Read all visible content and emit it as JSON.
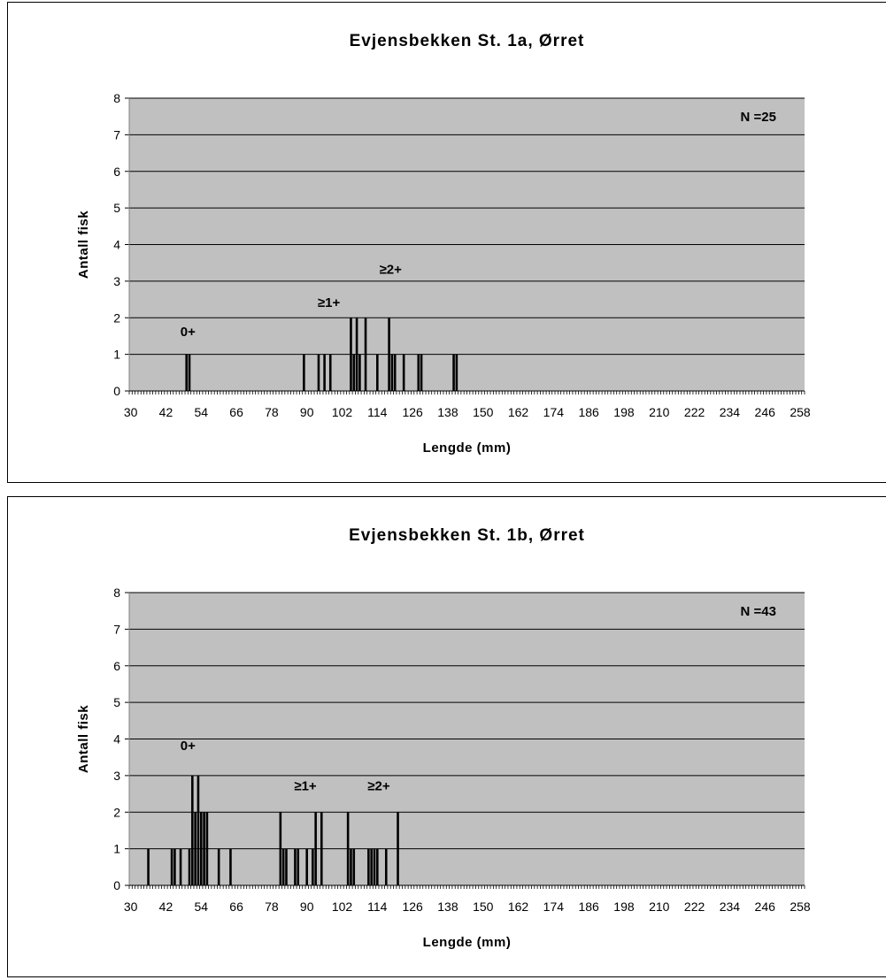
{
  "chart_data": [
    {
      "type": "bar",
      "title": "Evjensbekken St. 1a, Ørret",
      "xlabel": "Lengde (mm)",
      "ylabel": "Antall fisk",
      "ylim": [
        0,
        8
      ],
      "yticks": [
        "0",
        "1",
        "2",
        "3",
        "4",
        "5",
        "6",
        "7",
        "8"
      ],
      "xlim": [
        30,
        260
      ],
      "xticks": [
        "30",
        "42",
        "54",
        "66",
        "78",
        "90",
        "102",
        "114",
        "126",
        "138",
        "150",
        "162",
        "174",
        "186",
        "198",
        "210",
        "222",
        "234",
        "246",
        "258"
      ],
      "grid": true,
      "legend": "none",
      "n_label": "N =25",
      "age_labels": [
        {
          "text": "0+",
          "x": 50,
          "y": 1.5
        },
        {
          "text": "≥1+",
          "x": 98,
          "y": 2.3
        },
        {
          "text": "≥2+",
          "x": 119,
          "y": 3.2
        }
      ],
      "bars": [
        {
          "x": 49,
          "value": 1
        },
        {
          "x": 50,
          "value": 1
        },
        {
          "x": 89,
          "value": 1
        },
        {
          "x": 94,
          "value": 1
        },
        {
          "x": 96,
          "value": 1
        },
        {
          "x": 98,
          "value": 1
        },
        {
          "x": 105,
          "value": 2
        },
        {
          "x": 106,
          "value": 1
        },
        {
          "x": 107,
          "value": 2
        },
        {
          "x": 108,
          "value": 1
        },
        {
          "x": 110,
          "value": 2
        },
        {
          "x": 114,
          "value": 1
        },
        {
          "x": 118,
          "value": 2
        },
        {
          "x": 119,
          "value": 1
        },
        {
          "x": 120,
          "value": 1
        },
        {
          "x": 123,
          "value": 1
        },
        {
          "x": 128,
          "value": 1
        },
        {
          "x": 129,
          "value": 1
        },
        {
          "x": 140,
          "value": 1
        },
        {
          "x": 141,
          "value": 1
        }
      ]
    },
    {
      "type": "bar",
      "title": "Evjensbekken St. 1b, Ørret",
      "xlabel": "Lengde (mm)",
      "ylabel": "Antall fisk",
      "ylim": [
        0,
        8
      ],
      "yticks": [
        "0",
        "1",
        "2",
        "3",
        "4",
        "5",
        "6",
        "7",
        "8"
      ],
      "xlim": [
        30,
        260
      ],
      "xticks": [
        "30",
        "42",
        "54",
        "66",
        "78",
        "90",
        "102",
        "114",
        "126",
        "138",
        "150",
        "162",
        "174",
        "186",
        "198",
        "210",
        "222",
        "234",
        "246",
        "258"
      ],
      "grid": true,
      "legend": "none",
      "n_label": "N =43",
      "age_labels": [
        {
          "text": "0+",
          "x": 50,
          "y": 3.7
        },
        {
          "text": "≥1+",
          "x": 90,
          "y": 2.6
        },
        {
          "text": "≥2+",
          "x": 115,
          "y": 2.6
        }
      ],
      "bars": [
        {
          "x": 36,
          "value": 1
        },
        {
          "x": 44,
          "value": 1
        },
        {
          "x": 45,
          "value": 1
        },
        {
          "x": 47,
          "value": 1
        },
        {
          "x": 50,
          "value": 1
        },
        {
          "x": 51,
          "value": 3
        },
        {
          "x": 52,
          "value": 2
        },
        {
          "x": 53,
          "value": 3
        },
        {
          "x": 54,
          "value": 2
        },
        {
          "x": 55,
          "value": 2
        },
        {
          "x": 56,
          "value": 2
        },
        {
          "x": 60,
          "value": 1
        },
        {
          "x": 64,
          "value": 1
        },
        {
          "x": 81,
          "value": 2
        },
        {
          "x": 82,
          "value": 1
        },
        {
          "x": 83,
          "value": 1
        },
        {
          "x": 86,
          "value": 1
        },
        {
          "x": 87,
          "value": 1
        },
        {
          "x": 90,
          "value": 1
        },
        {
          "x": 92,
          "value": 1
        },
        {
          "x": 93,
          "value": 2
        },
        {
          "x": 95,
          "value": 2
        },
        {
          "x": 104,
          "value": 2
        },
        {
          "x": 105,
          "value": 1
        },
        {
          "x": 106,
          "value": 1
        },
        {
          "x": 111,
          "value": 1
        },
        {
          "x": 112,
          "value": 1
        },
        {
          "x": 113,
          "value": 1
        },
        {
          "x": 114,
          "value": 1
        },
        {
          "x": 117,
          "value": 1
        },
        {
          "x": 121,
          "value": 2
        }
      ]
    }
  ]
}
